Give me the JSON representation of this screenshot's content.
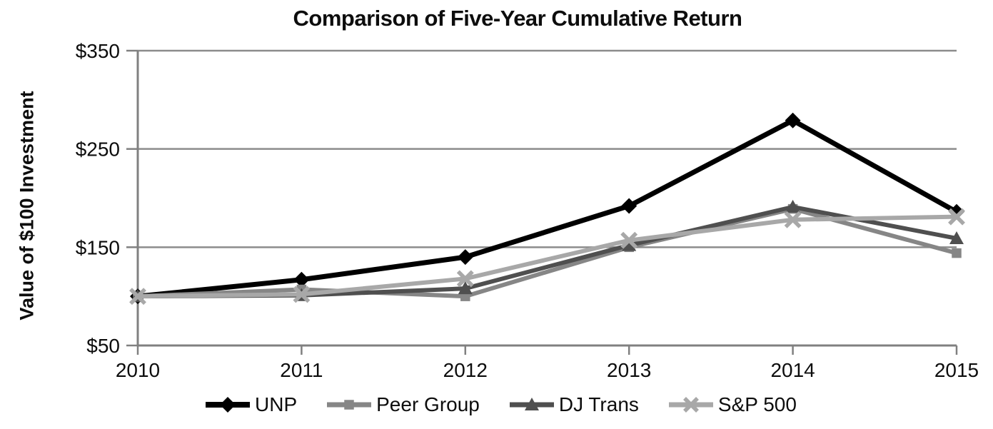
{
  "title": "Comparison of Five-Year Cumulative Return",
  "y_axis_label": "Value of $100 Investment",
  "chart_data": {
    "type": "line",
    "x": [
      "2010",
      "2011",
      "2012",
      "2013",
      "2014",
      "2015"
    ],
    "series": [
      {
        "name": "UNP",
        "marker": "diamond",
        "color": "#000000",
        "line_width": 7,
        "values": [
          100,
          117,
          140,
          192,
          279,
          186
        ]
      },
      {
        "name": "Peer Group",
        "marker": "square",
        "color": "#868686",
        "line_width": 6,
        "values": [
          100,
          107,
          100,
          150,
          189,
          144
        ]
      },
      {
        "name": "DJ Trans",
        "marker": "triangle",
        "color": "#4f4f4f",
        "line_width": 6,
        "values": [
          100,
          101,
          108,
          152,
          191,
          159
        ]
      },
      {
        "name": "S&P 500",
        "marker": "x",
        "color": "#a8a8a8",
        "line_width": 6,
        "values": [
          100,
          102,
          118,
          157,
          178,
          181
        ]
      }
    ],
    "ylim": [
      50,
      350
    ],
    "yticks": [
      50,
      150,
      250,
      350
    ],
    "ytick_labels": [
      "$50",
      "$150",
      "$250",
      "$350"
    ],
    "grid": "horizontal gridlines at $150, $250, $350",
    "legend_position": "bottom"
  },
  "colors": {
    "axis": "#808080",
    "grid": "#8c8c8c",
    "text": "#0d0d0d",
    "background": "#ffffff"
  }
}
